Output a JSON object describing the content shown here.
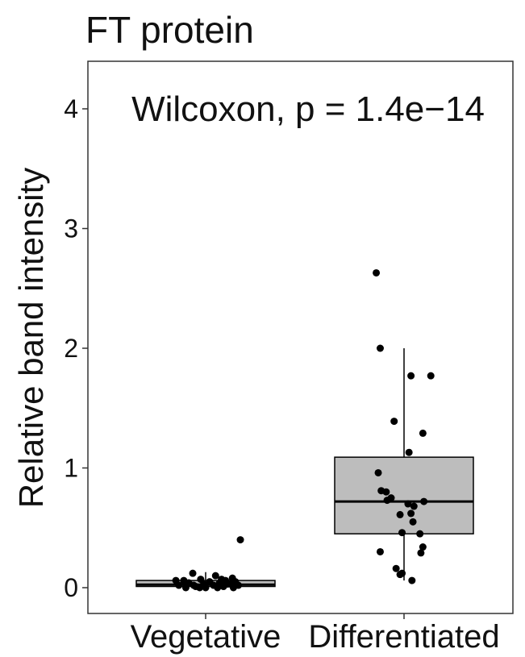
{
  "chart_data": {
    "type": "boxplot",
    "title": "FT protein",
    "xlabel": "",
    "ylabel": "Relative band intensity",
    "categories": [
      "Vegetative",
      "Differentiated"
    ],
    "ylim": [
      -0.2,
      4.35
    ],
    "yticks": [
      "0",
      "1",
      "2",
      "3",
      "4"
    ],
    "grid": false,
    "annotation": "Wilcoxon, p = 1.4e−14",
    "box_fill": "#bdbdbd",
    "point_color": "#000000",
    "boxes": [
      {
        "category": "Vegetative",
        "min": 0.0,
        "q1": 0.01,
        "median": 0.025,
        "q3": 0.06,
        "max": 0.13
      },
      {
        "category": "Differentiated",
        "min": 0.06,
        "q1": 0.45,
        "median": 0.72,
        "q3": 1.09,
        "max": 2.0
      }
    ],
    "points": [
      {
        "category": "Vegetative",
        "values": [
          0.4,
          0.12,
          0.1,
          0.08,
          0.07,
          0.06,
          0.06,
          0.05,
          0.05,
          0.04,
          0.04,
          0.03,
          0.03,
          0.02,
          0.02,
          0.02,
          0.01,
          0.01,
          0.0,
          0.0,
          0.0,
          0.0,
          0.0,
          0.06,
          0.03,
          0.07,
          0.02
        ],
        "jitter": [
          0.35,
          -0.13,
          0.1,
          0.27,
          -0.05,
          0.2,
          -0.22,
          0.04,
          0.3,
          -0.17,
          0.14,
          -0.02,
          0.25,
          -0.27,
          0.08,
          0.33,
          -0.1,
          0.18,
          -0.2,
          0.0,
          0.12,
          0.28,
          -0.06,
          -0.3,
          0.22,
          0.16,
          -0.12
        ]
      },
      {
        "category": "Differentiated",
        "values": [
          2.63,
          2.0,
          1.77,
          1.77,
          1.39,
          1.29,
          1.13,
          0.96,
          0.81,
          0.8,
          0.75,
          0.73,
          0.72,
          0.7,
          0.68,
          0.62,
          0.61,
          0.55,
          0.46,
          0.45,
          0.34,
          0.3,
          0.29,
          0.16,
          0.12,
          0.11,
          0.06
        ],
        "jitter": [
          -0.28,
          -0.24,
          0.07,
          0.27,
          -0.1,
          0.19,
          0.05,
          -0.26,
          -0.23,
          -0.18,
          -0.13,
          -0.17,
          0.2,
          0.04,
          0.1,
          0.07,
          -0.04,
          0.09,
          -0.02,
          0.16,
          0.19,
          -0.24,
          0.17,
          -0.08,
          -0.02,
          -0.04,
          0.08
        ]
      }
    ]
  }
}
